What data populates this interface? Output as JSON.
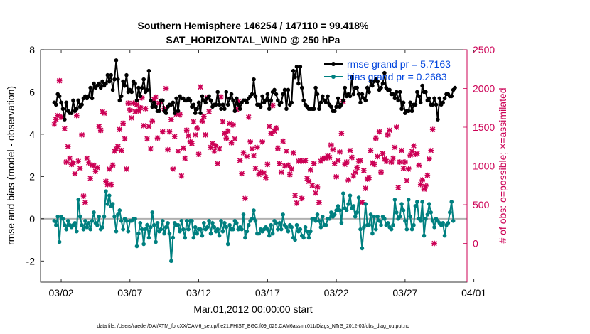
{
  "chart_data": {
    "type": "line",
    "title": "Southern Hemisphere 146254 / 147110 = 99.418%",
    "subtitle": "SAT_HORIZONTAL_WIND @ 250 hPa",
    "xlabel": "Mar.01,2012 00:00:00 start",
    "ylabel_left": "rmse and bias (model - observation)",
    "ylabel_right": "# of obs: o=possible; ×=assimilated",
    "footnote": "data file: /Users/raeder/DAI/ATM_forcXX/CAM6_setup/f.e21.FHIST_BGC.f09_025.CAM6assim.011/Diags_NTrS_2012-03/obs_diag_output.nc",
    "x_ticks": [
      "03/02",
      "03/07",
      "03/12",
      "03/17",
      "03/22",
      "03/27",
      "04/01"
    ],
    "y_left_ticks": [
      "-2",
      "0",
      "2",
      "4",
      "6",
      "8"
    ],
    "y_right_ticks": [
      "0",
      "500",
      "1000",
      "1500",
      "2000",
      "2500"
    ],
    "ylim_left": [
      -3,
      8
    ],
    "ylim_right": [
      -500,
      2500
    ],
    "xlim_days": [
      0.5,
      31.5
    ],
    "grid": false,
    "legend_position": "top-right",
    "colors": {
      "rmse": "#000000",
      "bias": "#008080",
      "obs": "#cc0055",
      "zero_line": "#b0b0b0",
      "right_axis": "#cc0055",
      "legend_text": "#0044dd"
    },
    "x_day_offset": 0.5,
    "series": [
      {
        "name": "rmse grand pr = 5.7163",
        "values": [
          5.5,
          5.4,
          5.9,
          5.8,
          5.5,
          5.2,
          4.7,
          5.5,
          5.1,
          5.0,
          5.0,
          5.6,
          5.1,
          5.2,
          5.6,
          5.3,
          5.4,
          5.7,
          5.8,
          5.7,
          5.8,
          6.2,
          5.7,
          6.4,
          6.2,
          6.3,
          6.4,
          6.2,
          6.5,
          6.3,
          6.4,
          6.8,
          6.5,
          6.8,
          6.1,
          6.6,
          7.5,
          6.6,
          5.6,
          5.8,
          6.5,
          6.3,
          6.8,
          6.0,
          6.1,
          6.0,
          6.5,
          6.4,
          5.6,
          6.2,
          5.8,
          6.2,
          6.6,
          6.0,
          6.1,
          7.0,
          5.6,
          5.3,
          5.5,
          5.3,
          5.1,
          5.1,
          5.6,
          5.6,
          5.1,
          5.0,
          5.3,
          5.4,
          5.4,
          5.5,
          5.0,
          5.7,
          5.1,
          5.8,
          5.7,
          5.7,
          5.6,
          5.6,
          5.7,
          5.6,
          5.3,
          5.4,
          5.0,
          5.2,
          5.5,
          5.0,
          5.8,
          5.6,
          5.5,
          5.7,
          5.8,
          5.6,
          5.3,
          5.4,
          5.4,
          6.0,
          5.4,
          5.2,
          5.4,
          5.2,
          6.0,
          5.4,
          5.7,
          5.9,
          5.6,
          5.1,
          5.7,
          5.4,
          5.2,
          5.5,
          5.6,
          5.6,
          5.5,
          5.7,
          5.8,
          5.9,
          6.6,
          5.8,
          5.4,
          5.4,
          5.3,
          5.8,
          5.5,
          5.6,
          5.9,
          5.2,
          5.6,
          6.0,
          6.1,
          5.9,
          5.6,
          5.4,
          5.5,
          5.9,
          6.1,
          5.2,
          6.1,
          5.4,
          5.5,
          7.0,
          6.7,
          7.2,
          6.4,
          7.2,
          6.2,
          5.6,
          5.4,
          5.3,
          5.2,
          5.2,
          5.2,
          5.2,
          6.2,
          5.9,
          5.2,
          5.5,
          5.8,
          5.6,
          5.5,
          5.8,
          5.4,
          5.3,
          5.1,
          5.1,
          5.3,
          5.7,
          5.3,
          5.4,
          5.6,
          6.2,
          5.8,
          5.9,
          5.8,
          6.7,
          5.9,
          6.2,
          6.2,
          5.9,
          5.5,
          5.9,
          5.7,
          5.6,
          6.2,
          6.0,
          6.5,
          6.3,
          6.5,
          6.6,
          6.5,
          6.1,
          6.2,
          6.4,
          6.9,
          6.2,
          6.1,
          6.1,
          5.9,
          5.9,
          5.7,
          6.0,
          5.6,
          6.0,
          5.2,
          5.5,
          5.0,
          5.1,
          5.1,
          5.5,
          5.1,
          5.4,
          5.4,
          6.0,
          5.8,
          5.5,
          6.3,
          6.0,
          6.0,
          5.6,
          5.7,
          5.4,
          5.4,
          5.7,
          5.4,
          4.7,
          5.7,
          5.4,
          5.5,
          5.7,
          5.9,
          5.9,
          5.8,
          5.8,
          6.1,
          6.2
        ]
      },
      {
        "name": "bias grand pr = 0.2683",
        "values": [
          -0.1,
          -0.3,
          0.1,
          -1.1,
          0.1,
          0.0,
          -0.3,
          -0.5,
          -0.1,
          -0.3,
          -0.4,
          -0.3,
          -0.2,
          -0.6,
          0.9,
          0.1,
          -0.3,
          -0.5,
          -0.1,
          -0.4,
          -0.2,
          -0.5,
          -0.1,
          0.3,
          -0.2,
          -0.3,
          0.1,
          -0.5,
          -0.4,
          0.1,
          1.3,
          0.7,
          1.1,
          0.6,
          0.7,
          0.1,
          -0.6,
          0.2,
          0.4,
          -0.1,
          -0.5,
          0.0,
          -0.1,
          -0.6,
          -0.1,
          -0.1,
          0.0,
          0.0,
          -1.3,
          -0.7,
          -0.2,
          -0.5,
          -1.2,
          -0.5,
          -0.3,
          -0.9,
          -0.4,
          0.3,
          -0.3,
          -1.1,
          -0.2,
          -0.6,
          -0.5,
          -0.1,
          -0.7,
          -0.4,
          -0.2,
          -0.7,
          -2.0,
          -0.9,
          -0.2,
          -0.3,
          -0.3,
          -0.6,
          -0.1,
          -0.5,
          -0.9,
          -0.1,
          -0.5,
          -0.1,
          -0.1,
          -0.9,
          -0.4,
          -0.7,
          -0.5,
          -0.5,
          -0.8,
          -0.2,
          -0.5,
          -0.4,
          -0.1,
          -0.7,
          -0.2,
          -0.4,
          -0.6,
          -0.5,
          -0.8,
          -0.1,
          -0.6,
          -0.2,
          -0.4,
          -1.2,
          -0.3,
          -0.5,
          -0.5,
          -0.1,
          -0.2,
          -0.5,
          -0.4,
          -0.5,
          0.2,
          -0.9,
          -0.6,
          -0.3,
          -0.1,
          0.0,
          0.4,
          -0.1,
          -0.7,
          -0.7,
          -0.5,
          -0.6,
          -0.5,
          -0.4,
          -0.5,
          -0.8,
          -0.3,
          -0.7,
          -0.1,
          -0.2,
          -0.5,
          -0.2,
          -0.5,
          0.2,
          -0.3,
          -0.4,
          -0.6,
          -0.3,
          -0.4,
          -0.9,
          -1.0,
          -0.3,
          -0.6,
          -0.5,
          -0.8,
          -0.9,
          -0.4,
          -0.6,
          -0.9,
          -0.6,
          0.0,
          0.0,
          -0.1,
          0.2,
          -0.1,
          -0.4,
          0.1,
          -0.3,
          -0.3,
          0.0,
          0.0,
          0.3,
          0.1,
          0.2,
          0.4,
          0.6,
          0.4,
          -0.2,
          1.2,
          0.5,
          0.4,
          0.7,
          1.1,
          0.5,
          0.6,
          0.1,
          0.3,
          1.0,
          -0.5,
          -1.4,
          -0.4,
          0.7,
          -0.3,
          -0.3,
          0.2,
          -0.7,
          0.1,
          -0.5,
          0.1,
          -0.1,
          -0.3,
          0.1,
          0.0,
          -0.3,
          -0.2,
          -0.4,
          -0.5,
          -0.3,
          0.9,
          0.3,
          0.0,
          0.1,
          0.7,
          0.4,
          -0.1,
          -0.5,
          0.9,
          0.1,
          -0.5,
          -0.3,
          0.6,
          0.8,
          0.0,
          -0.1,
          0.8,
          -0.8,
          0.0,
          0.2,
          0.7,
          0.3,
          -0.1,
          -0.4,
          0.0,
          -0.1,
          -0.2,
          -0.3,
          -0.2,
          -0.8,
          -0.3,
          -0.2,
          0.3,
          0.8,
          -0.1
        ]
      }
    ],
    "obs": {
      "marker": "×",
      "values": [
        1540,
        1600,
        1650,
        2100,
        1630,
        1630,
        1480,
        1050,
        1250,
        1100,
        1020,
        1040,
        900,
        1650,
        1060,
        970,
        1400,
        610,
        530,
        1100,
        1040,
        840,
        1010,
        1000,
        930,
        980,
        1510,
        1460,
        1700,
        1680,
        800,
        760,
        960,
        760,
        1010,
        1190,
        1220,
        1250,
        1470,
        1200,
        1550,
        1350,
        960,
        1810,
        1720,
        1620,
        1810,
        1700,
        1790,
        1710,
        1750,
        1880,
        1520,
        1740,
        1350,
        1510,
        1220,
        1580,
        1860,
        1890,
        1360,
        1810,
        1830,
        1440,
        1740,
        2000,
        1210,
        1440,
        1600,
        960,
        1380,
        1670,
        1190,
        1660,
        870,
        1230,
        1100,
        1460,
        1390,
        1310,
        1290,
        1570,
        1400,
        1490,
        1150,
        2020,
        1580,
        1640,
        1400,
        1880,
        1700,
        1240,
        1290,
        1190,
        1260,
        1030,
        1220,
        1890,
        1570,
        1420,
        1360,
        1450,
        1550,
        1300,
        1530,
        1350,
        1730,
        1830,
        1070,
        900,
        1170,
        580,
        1120,
        1630,
        1310,
        1220,
        1130,
        970,
        1240,
        890,
        920,
        1310,
        910,
        850,
        1020,
        1510,
        1420,
        1780,
        1450,
        1490,
        1230,
        1030,
        920,
        1320,
        1000,
        1190,
        1010,
        890,
        960,
        1170,
        620,
        520,
        1060,
        1070,
        580,
        1060,
        1070,
        840,
        800,
        950,
        750,
        1030,
        650,
        730,
        530,
        1060,
        1090,
        1100,
        1100,
        1130,
        1110,
        1270,
        1210,
        1030,
        860,
        1070,
        1180,
        1420,
        1830,
        1020,
        1050,
        820,
        1200,
        1110,
        870,
        920,
        980,
        1060,
        1070,
        530,
        940,
        710,
        830,
        850,
        1200,
        1040,
        1020,
        1360,
        1120,
        1440,
        920,
        1160,
        1090,
        1060,
        1400,
        1460,
        1050,
        1100,
        1240,
        1500,
        720,
        1050,
        1200,
        970,
        1050,
        810,
        960,
        1140,
        1190,
        1260,
        1150,
        1160,
        1010,
        760,
        820,
        700,
        740,
        880,
        1090,
        1200,
        1470,
        0
      ]
    }
  }
}
